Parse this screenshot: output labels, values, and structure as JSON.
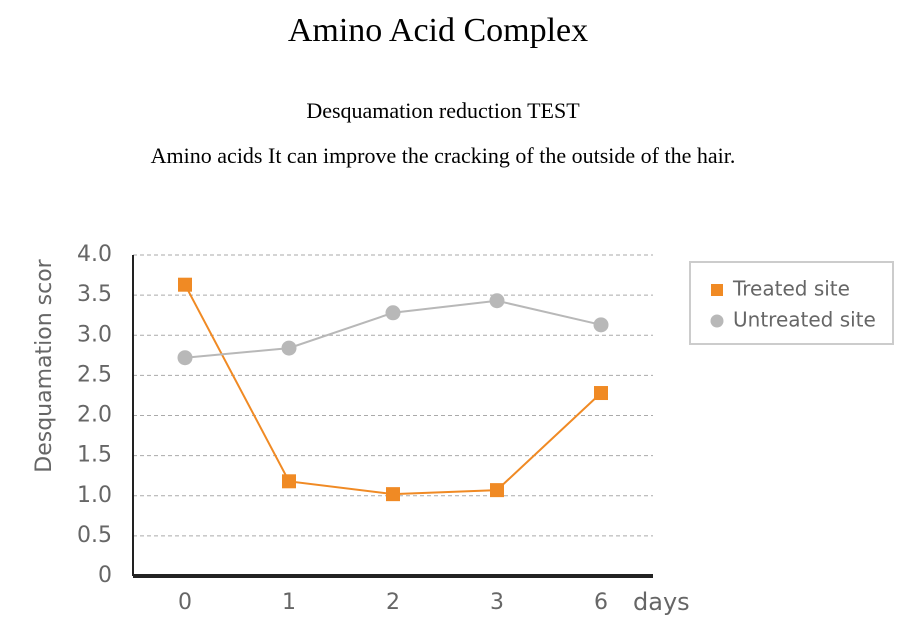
{
  "header": {
    "title": "Amino Acid Complex",
    "subtitle": "Desquamation reduction TEST",
    "text": "Amino acids It can improve the cracking of the outside of the hair."
  },
  "chart_data": {
    "type": "line",
    "ylabel": "Desquamation scor",
    "xlabel": "days",
    "categories": [
      "0",
      "1",
      "2",
      "3",
      "6"
    ],
    "series": [
      {
        "name": "Treated site",
        "color": "#f08a24",
        "values": [
          3.63,
          1.18,
          1.02,
          1.07,
          2.28
        ]
      },
      {
        "name": "Untreated site",
        "color": "#b8b8b8",
        "values": [
          2.72,
          2.84,
          3.28,
          3.43,
          3.13
        ]
      }
    ],
    "ylim": [
      0,
      4
    ],
    "yticks": [
      0,
      0.5,
      {
        "value": 1,
        "label": "1.0"
      },
      1.5,
      {
        "value": 2,
        "label": "2.0"
      },
      2.5,
      {
        "value": 3,
        "label": "3.0"
      },
      3.5,
      {
        "value": 4,
        "label": "4.0"
      }
    ],
    "grid": true
  }
}
